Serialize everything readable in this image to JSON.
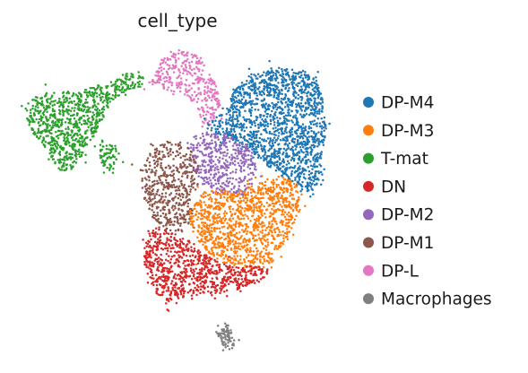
{
  "chart_data": {
    "type": "scatter",
    "title": "cell_type",
    "xlabel": "",
    "ylabel": "",
    "axes": "off",
    "grid": false,
    "legend_position": "right",
    "categories": [
      "DP-M4",
      "DP-M3",
      "T-mat",
      "DN",
      "DP-M2",
      "DP-M1",
      "DP-L",
      "Macrophages"
    ],
    "colors": {
      "DP-M4": "#1f77b4",
      "DP-M3": "#ff7f0e",
      "T-mat": "#2ca02c",
      "DN": "#d62728",
      "DP-M2": "#9467bd",
      "DP-M1": "#8c564b",
      "DP-L": "#e377c2",
      "Macrophages": "#7f7f7f"
    }
  }
}
